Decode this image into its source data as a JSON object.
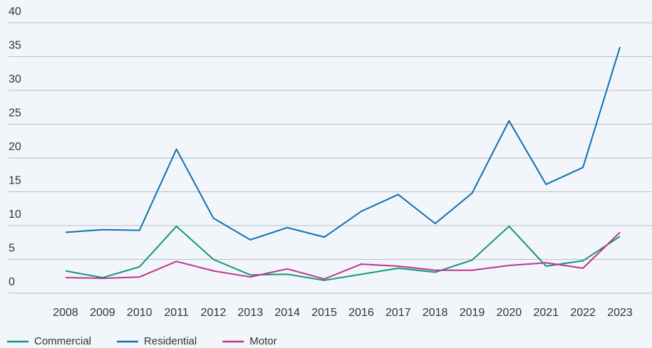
{
  "chart_data": {
    "type": "line",
    "categories": [
      "2008",
      "2009",
      "2010",
      "2011",
      "2012",
      "2013",
      "2014",
      "2015",
      "2016",
      "2017",
      "2018",
      "2019",
      "2020",
      "2021",
      "2022",
      "2023"
    ],
    "series": [
      {
        "name": "Commercial",
        "color": "#11977a",
        "values": [
          3.3,
          2.3,
          3.9,
          9.9,
          5.0,
          2.7,
          2.8,
          1.9,
          2.8,
          3.7,
          3.1,
          4.9,
          9.9,
          4.0,
          4.8,
          8.4
        ]
      },
      {
        "name": "Residential",
        "color": "#1170b0",
        "values": [
          9.0,
          9.4,
          9.3,
          21.3,
          11.1,
          7.9,
          9.7,
          8.3,
          12.1,
          14.6,
          10.3,
          14.8,
          25.5,
          16.1,
          18.6,
          36.4
        ]
      },
      {
        "name": "Motor",
        "color": "#bd3590",
        "values": [
          2.3,
          2.2,
          2.4,
          4.7,
          3.3,
          2.4,
          3.6,
          2.1,
          4.3,
          4.0,
          3.4,
          3.4,
          4.1,
          4.5,
          3.7,
          9.0
        ]
      }
    ],
    "ylim": [
      0,
      40
    ],
    "yticks": [
      0,
      5,
      10,
      15,
      20,
      25,
      30,
      35,
      40
    ],
    "grid": true,
    "legend": "bottom-left"
  }
}
